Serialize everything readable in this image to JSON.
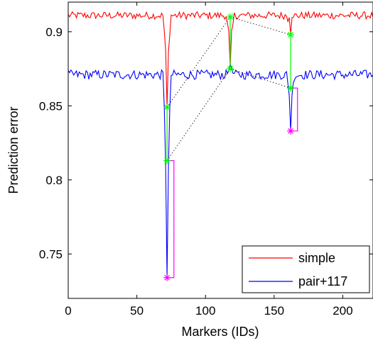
{
  "chart_data": {
    "type": "line",
    "xlabel": "Markers (IDs)",
    "ylabel": "Prediction error",
    "xlim": [
      0,
      222
    ],
    "ylim": [
      0.72,
      0.92
    ],
    "xticks": [
      0,
      50,
      100,
      150,
      200
    ],
    "yticks": [
      0.75,
      0.8,
      0.85,
      0.9
    ],
    "grid": false,
    "legend_position": "bottom-right",
    "series": [
      {
        "name": "simple",
        "color": "#ff0000",
        "baseline": 0.911,
        "noise": 0.0025,
        "dips": [
          {
            "x": 72,
            "y": 0.849
          },
          {
            "x": 118,
            "y": 0.876
          },
          {
            "x": 162,
            "y": 0.898
          }
        ]
      },
      {
        "name": "pair+117",
        "color": "#0000ff",
        "baseline": 0.871,
        "noise": 0.0032,
        "dips": [
          {
            "x": 72,
            "y": 0.734
          },
          {
            "x": 118,
            "y": 0.878
          },
          {
            "x": 162,
            "y": 0.833
          }
        ]
      }
    ],
    "annotations": {
      "green_markers": [
        {
          "x": 72,
          "y": 0.849
        },
        {
          "x": 72,
          "y": 0.813
        },
        {
          "x": 118,
          "y": 0.91
        },
        {
          "x": 118,
          "y": 0.875
        },
        {
          "x": 162,
          "y": 0.898
        },
        {
          "x": 162,
          "y": 0.862
        }
      ],
      "magenta_markers": [
        {
          "x": 72,
          "y": 0.734
        },
        {
          "x": 162,
          "y": 0.833
        }
      ],
      "green_segments": [
        {
          "x": 72,
          "y1": 0.849,
          "y2": 0.813
        },
        {
          "x": 118,
          "y1": 0.91,
          "y2": 0.875
        },
        {
          "x": 162,
          "y1": 0.898,
          "y2": 0.862
        }
      ],
      "magenta_brackets": [
        {
          "x1": 72,
          "x2": 77,
          "y_top": 0.813,
          "y_bottom": 0.734
        },
        {
          "x1": 162,
          "x2": 167,
          "y_top": 0.862,
          "y_bottom": 0.833
        }
      ],
      "dotted_links": [
        {
          "x1": 72,
          "y1": 0.849,
          "x2": 118,
          "y2": 0.91
        },
        {
          "x1": 72,
          "y1": 0.813,
          "x2": 118,
          "y2": 0.875
        },
        {
          "x1": 118,
          "y1": 0.91,
          "x2": 162,
          "y2": 0.898
        },
        {
          "x1": 118,
          "y1": 0.875,
          "x2": 162,
          "y2": 0.862
        }
      ]
    }
  }
}
